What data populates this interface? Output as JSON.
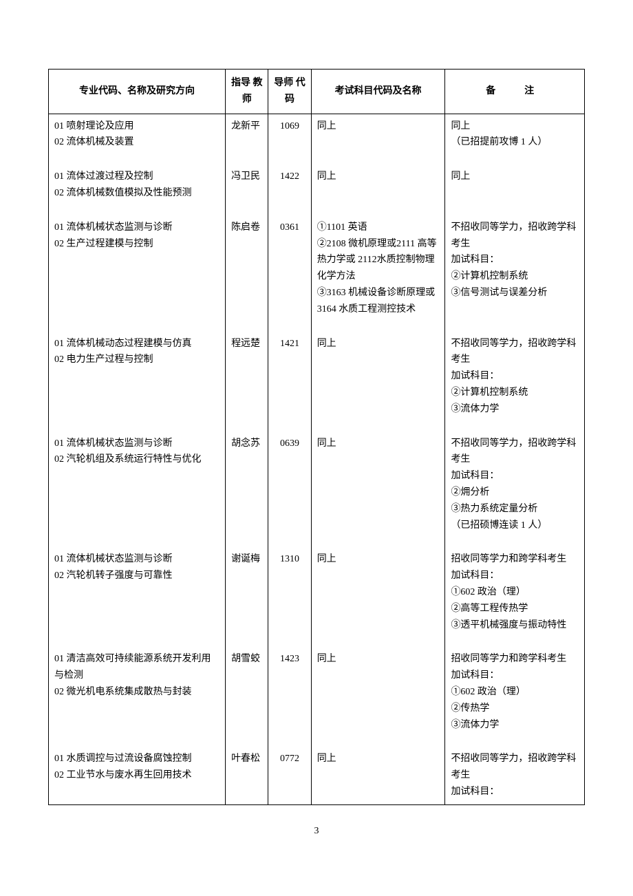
{
  "headers": {
    "major": "专业代码、名称及研究方向",
    "teacher": "指导\n教师",
    "code": "导师\n代码",
    "exam": "考试科目代码及名称",
    "note": "备　注"
  },
  "rows": [
    {
      "major": "01 喷射理论及应用\n02 流体机械及装置",
      "teacher": "龙新平",
      "code": "1069",
      "exam": "同上",
      "note": "同上\n（已招提前攻博 1 人）"
    },
    {
      "major": "01 流体过渡过程及控制\n02 流体机械数值模拟及性能预测",
      "teacher": "冯卫民",
      "code": "1422",
      "exam": "同上",
      "note": "同上"
    },
    {
      "major": "01 流体机械状态监测与诊断\n02 生产过程建模与控制",
      "teacher": "陈启卷",
      "code": "0361",
      "exam": "①1101 英语\n②2108 微机原理或2111 高等热力学或 2112水质控制物理化学方法\n③3163 机械设备诊断原理或 3164 水质工程测控技术",
      "note": "不招收同等学力，招收跨学科考生\n加试科目：\n②计算机控制系统\n③信号测试与误差分析"
    },
    {
      "major": "01 流体机械动态过程建模与仿真\n02 电力生产过程与控制",
      "teacher": "程远楚",
      "code": "1421",
      "exam": "同上",
      "note": "不招收同等学力，招收跨学科考生\n加试科目：\n②计算机控制系统\n③流体力学"
    },
    {
      "major": "01 流体机械状态监测与诊断\n02 汽轮机组及系统运行特性与优化",
      "teacher": "胡念苏",
      "code": "0639",
      "exam": "同上",
      "note": "不招收同等学力，招收跨学科考生\n加试科目：\n②㶲分析\n③热力系统定量分析\n（已招硕博连读 1 人）"
    },
    {
      "major": "01 流体机械状态监测与诊断\n02 汽轮机转子强度与可靠性",
      "teacher": "谢诞梅",
      "code": "1310",
      "exam": "同上",
      "note": "招收同等学力和跨学科考生\n加试科目：\n①602 政治（理）\n②高等工程传热学\n③透平机械强度与振动特性"
    },
    {
      "major": "01 清洁高效可持续能源系统开发利用与检测\n02 微光机电系统集成散热与封装",
      "teacher": "胡雪蛟",
      "code": "1423",
      "exam": "同上",
      "note": "招收同等学力和跨学科考生\n加试科目：\n①602 政治（理）\n②传热学\n③流体力学"
    },
    {
      "major": "01 水质调控与过流设备腐蚀控制\n02 工业节水与废水再生回用技术",
      "teacher": "叶春松",
      "code": "0772",
      "exam": "同上",
      "note": "不招收同等学力，招收跨学科考生\n加试科目："
    }
  ],
  "pageNumber": "3"
}
